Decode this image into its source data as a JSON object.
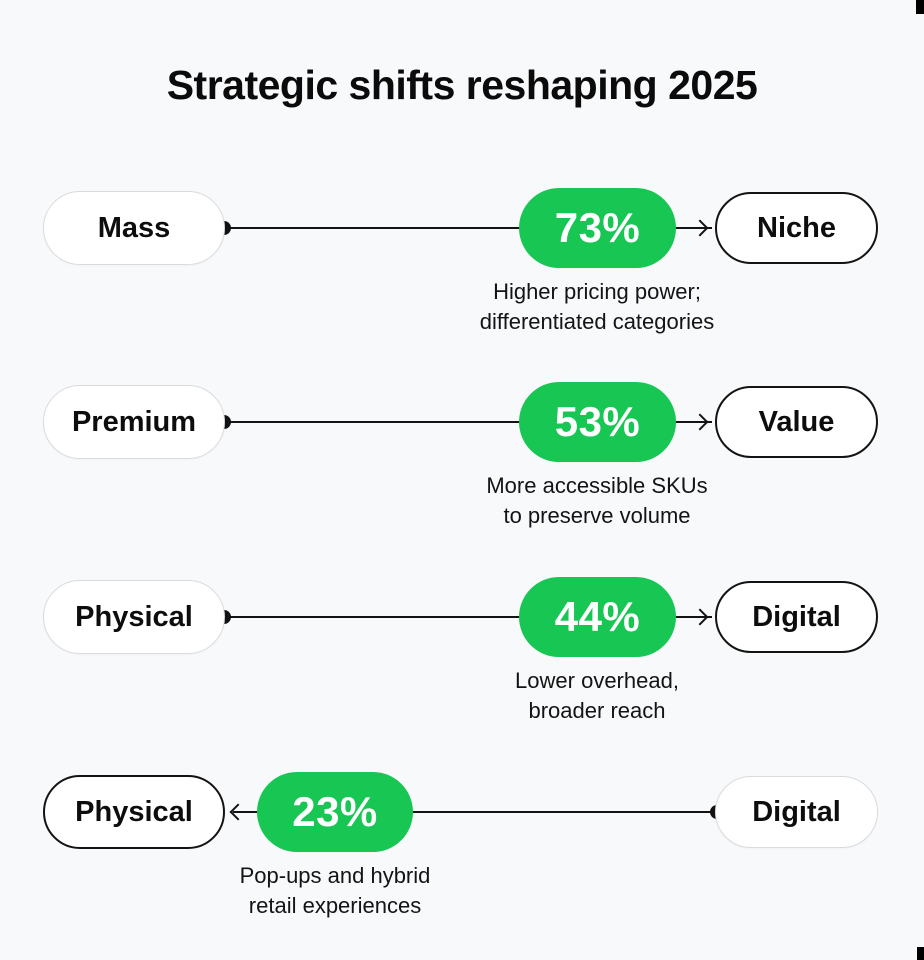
{
  "title": "Strategic shifts reshaping 2025",
  "colors": {
    "background": "#F8F9FB",
    "badge_green": "#17C653",
    "pill_border_light": "#DADBDF",
    "pill_border_dark": "#131313",
    "text": "#0B0B0C"
  },
  "rows": [
    {
      "left_label": "Mass",
      "right_label": "Niche",
      "percent": "73%",
      "direction": "left-to-right",
      "desc_line1": "Higher pricing power;",
      "desc_line2": "differentiated categories"
    },
    {
      "left_label": "Premium",
      "right_label": "Value",
      "percent": "53%",
      "direction": "left-to-right",
      "desc_line1": "More accessible SKUs",
      "desc_line2": "to preserve volume"
    },
    {
      "left_label": "Physical",
      "right_label": "Digital",
      "percent": "44%",
      "direction": "left-to-right",
      "desc_line1": "Lower overhead,",
      "desc_line2": "broader reach"
    },
    {
      "left_label": "Physical",
      "right_label": "Digital",
      "percent": "23%",
      "direction": "right-to-left",
      "desc_line1": "Pop-ups and hybrid",
      "desc_line2": "retail experiences"
    }
  ]
}
